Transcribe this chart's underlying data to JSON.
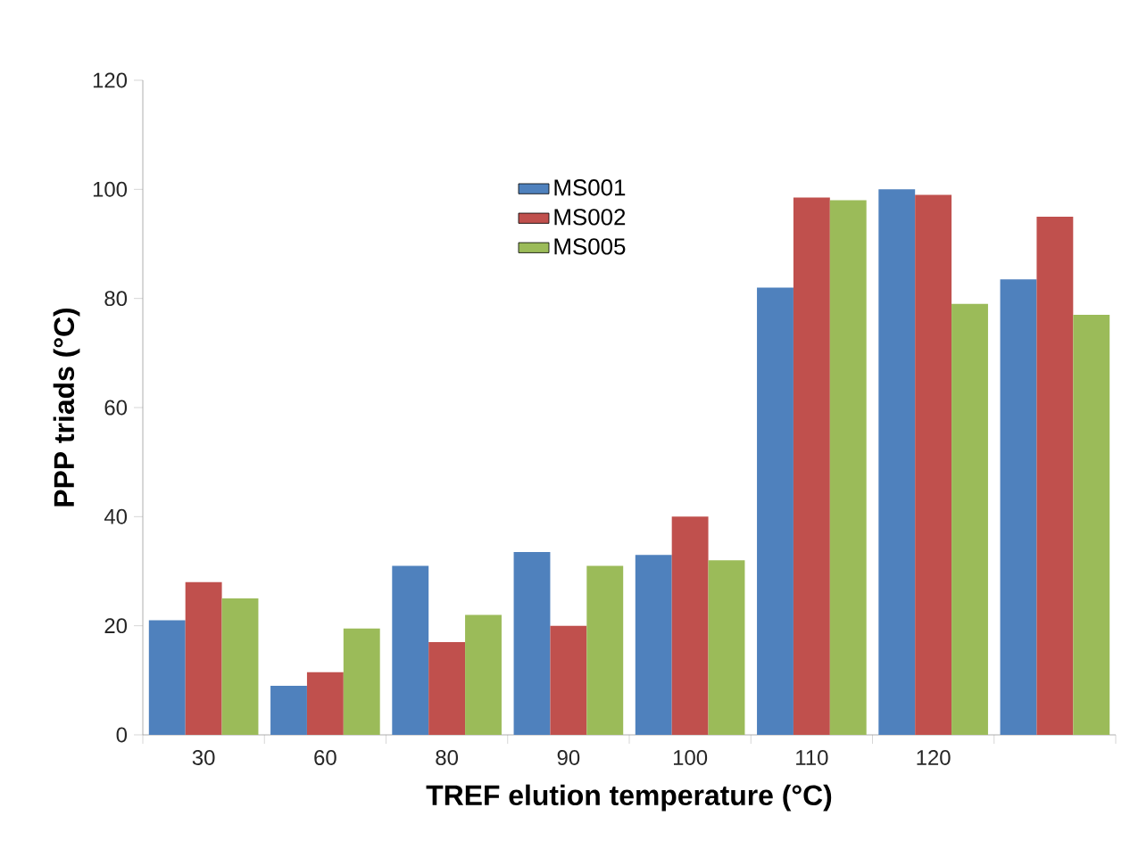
{
  "chart_data": {
    "type": "bar",
    "xlabel": "TREF elution temperature (°C)",
    "ylabel": "PPP triads (°C)",
    "categories": [
      "30",
      "60",
      "80",
      "90",
      "100",
      "110",
      "120",
      null
    ],
    "series": [
      {
        "name": "MS001",
        "color": "#4f81bd",
        "values": [
          21,
          9,
          31,
          33.5,
          33,
          82,
          100,
          83.5
        ]
      },
      {
        "name": "MS002",
        "color": "#c0504d",
        "values": [
          28,
          11.5,
          17,
          20,
          40,
          98.5,
          99,
          95
        ]
      },
      {
        "name": "MS005",
        "color": "#9bbb59",
        "values": [
          25,
          19.5,
          22,
          31,
          32,
          98,
          79,
          77
        ]
      }
    ],
    "ylim": [
      0,
      120
    ],
    "yticks": [
      0,
      20,
      40,
      60,
      80,
      100,
      120
    ],
    "legend": "top left",
    "grid": false
  }
}
